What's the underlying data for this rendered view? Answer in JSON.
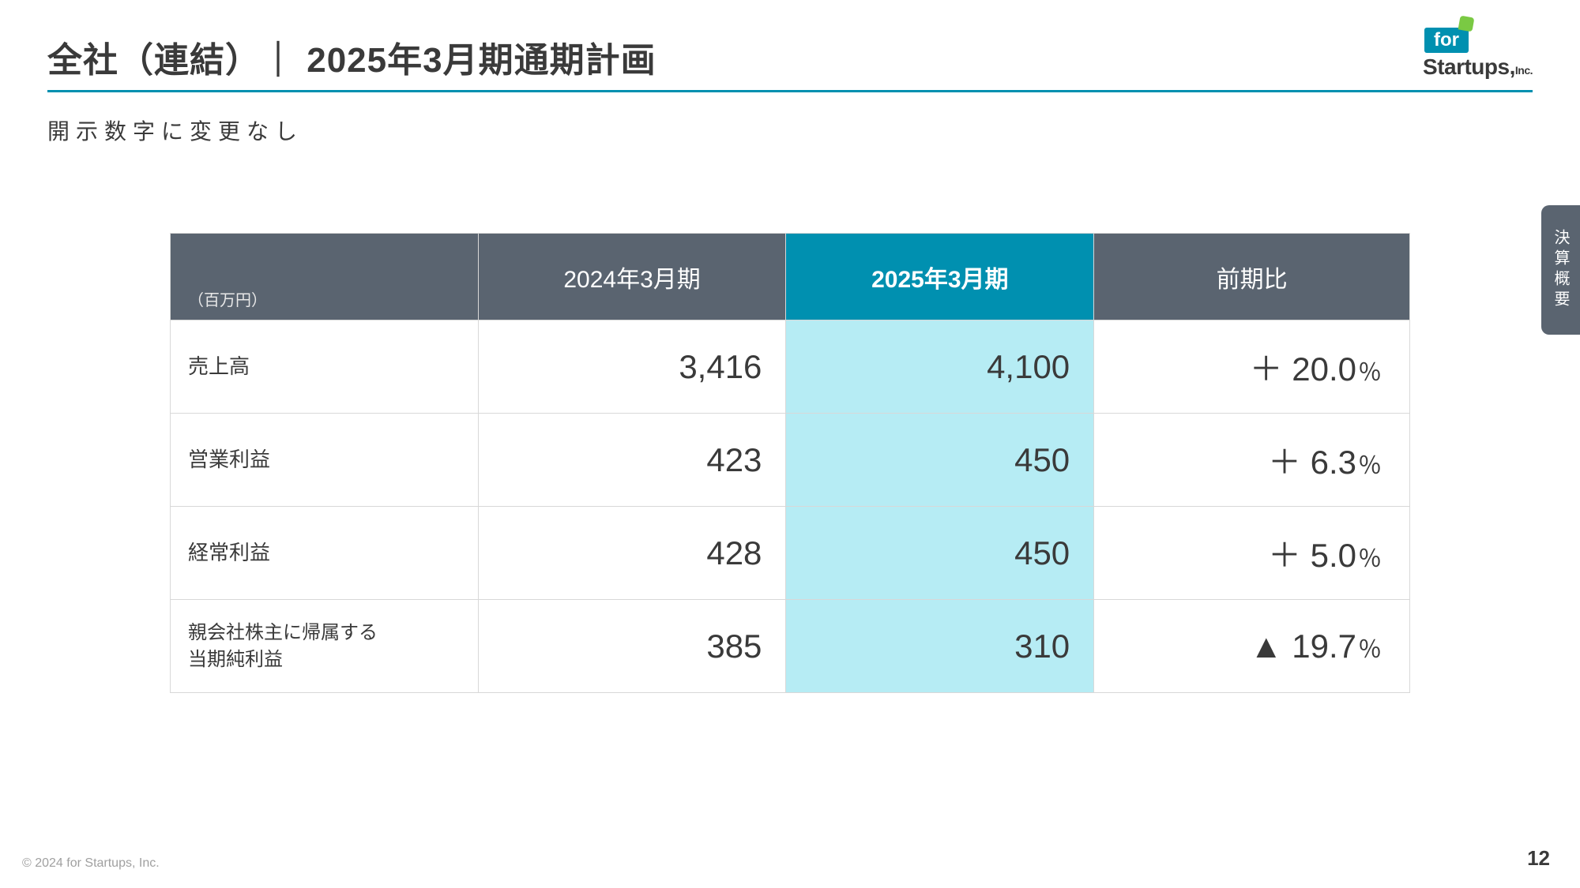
{
  "header": {
    "title": "全社（連結）｜ 2025年3月期通期計画",
    "subtitle": "開示数字に変更なし"
  },
  "logo": {
    "for": "for",
    "startups": "Startups,",
    "inc": "Inc."
  },
  "side_tab": "決算概要",
  "table": {
    "unit_note": "（百万円）",
    "columns": [
      "2024年3月期",
      "2025年3月期",
      "前期比"
    ],
    "highlight_col_index": 1,
    "rows": [
      {
        "label": "売上高",
        "fy2024": "3,416",
        "fy2025": "4,100",
        "change_prefix": "＋ 20.0",
        "change_suffix": "％"
      },
      {
        "label": "営業利益",
        "fy2024": "423",
        "fy2025": "450",
        "change_prefix": "＋ 6.3",
        "change_suffix": "％"
      },
      {
        "label": "経常利益",
        "fy2024": "428",
        "fy2025": "450",
        "change_prefix": "＋ 5.0",
        "change_suffix": "％"
      },
      {
        "label": "親会社株主に帰属する\n当期純利益",
        "fy2024": "385",
        "fy2025": "310",
        "change_prefix": "▲ 19.7",
        "change_suffix": "％"
      }
    ]
  },
  "footer": {
    "copyright": "© 2024 for Startups, Inc.",
    "page": "12"
  },
  "colors": {
    "accent": "#0090b0",
    "header_bg": "#5a6470",
    "highlight_cell": "#b6ecf4",
    "text": "#3a3a3a",
    "leaf": "#7ac943"
  }
}
